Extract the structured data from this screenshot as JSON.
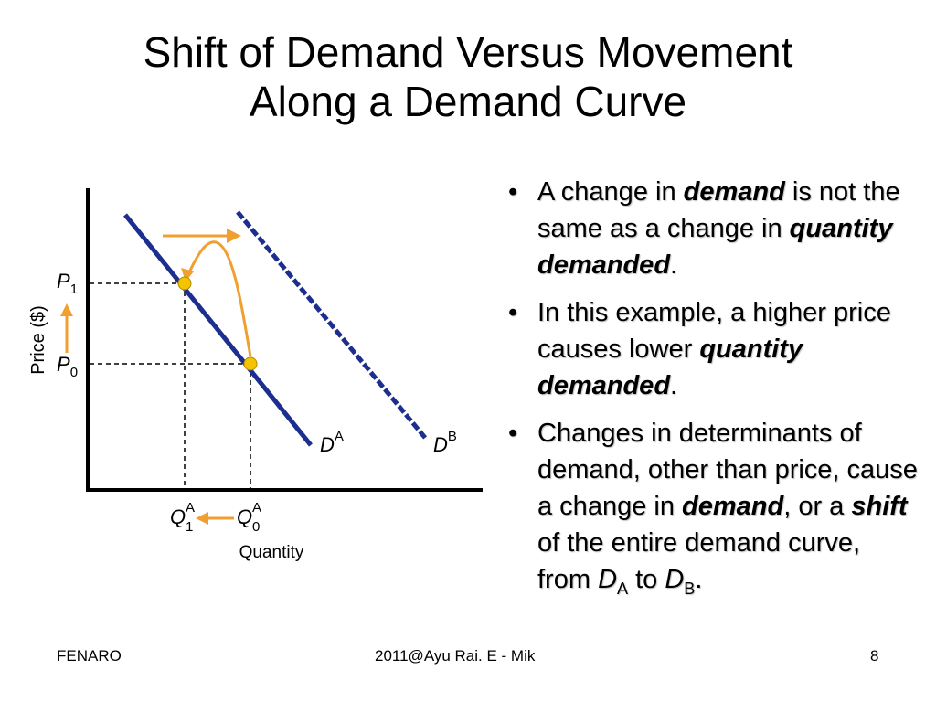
{
  "slide": {
    "title_line1": "Shift of Demand Versus Movement",
    "title_line2": "Along a Demand Curve"
  },
  "diagram": {
    "y_axis_label": "Price ($)",
    "x_axis_label": "Quantity",
    "price_high": {
      "letter": "P",
      "sub": "1"
    },
    "price_low": {
      "letter": "P",
      "sub": "0"
    },
    "qty_high": {
      "letter": "Q",
      "sub": "0",
      "sup": "A"
    },
    "qty_low": {
      "letter": "Q",
      "sub": "1",
      "sup": "A"
    },
    "curve_a": {
      "letter": "D",
      "sup": "A"
    },
    "curve_b": {
      "letter": "D",
      "sup": "B"
    },
    "colors": {
      "curve": "#1c2f8f",
      "arrow": "#f0a030",
      "point": "#f5c400"
    }
  },
  "bullets": [
    {
      "parts": [
        "A change in ",
        "demand",
        " is not the same as a change in ",
        "quantity demanded",
        "."
      ]
    },
    {
      "parts": [
        "In this example, a higher price causes lower ",
        "quantity demanded",
        "."
      ]
    },
    {
      "parts": [
        "Changes in determinants of demand, other than price, cause a change in ",
        "demand",
        ", or a ",
        "shift",
        " of the entire demand curve, from ",
        "D",
        "A",
        " to ",
        "D",
        "B",
        "."
      ]
    }
  ],
  "bullet_symbol": "•",
  "footer": {
    "left": "FENARO",
    "center": "2011@Ayu Rai. E - Mik",
    "page": "8"
  }
}
